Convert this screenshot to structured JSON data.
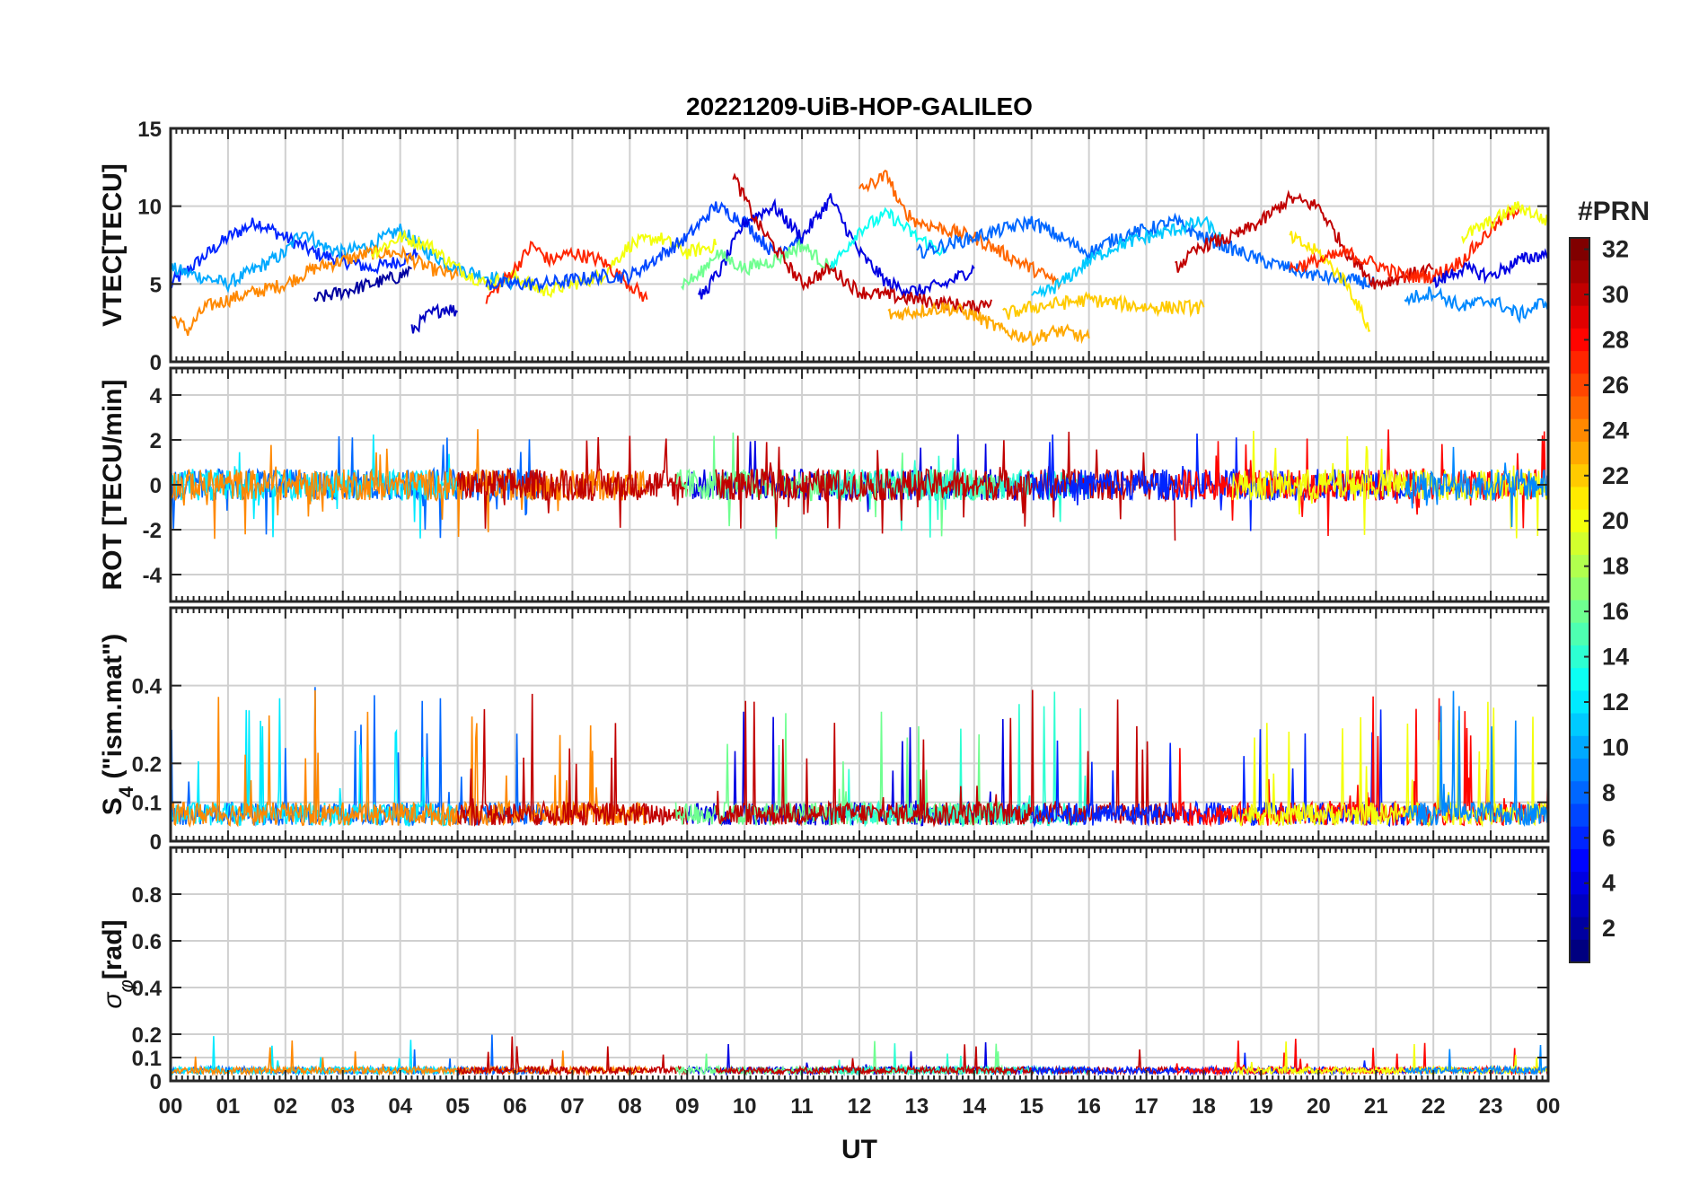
{
  "chart_data": {
    "type": "line",
    "title": "20221209-UiB-HOP-GALILEO",
    "xlabel": "UT",
    "x_ticks": [
      "00",
      "01",
      "02",
      "03",
      "04",
      "05",
      "06",
      "07",
      "08",
      "09",
      "10",
      "11",
      "12",
      "13",
      "14",
      "15",
      "16",
      "17",
      "18",
      "19",
      "20",
      "21",
      "22",
      "23",
      "00"
    ],
    "xlim": [
      0,
      24
    ],
    "grid": true,
    "colorbar": {
      "label": "#PRN",
      "range": [
        1,
        32
      ],
      "ticks": [
        "2",
        "4",
        "6",
        "8",
        "10",
        "12",
        "14",
        "16",
        "18",
        "20",
        "22",
        "24",
        "26",
        "28",
        "30",
        "32"
      ],
      "colormap": "jet",
      "placement": "right"
    },
    "panels": [
      {
        "id": "vtec",
        "ylabel": "VTEC[TECU]",
        "ylim": [
          0,
          15
        ],
        "yticks": [
          "0",
          "5",
          "10",
          "15"
        ],
        "series": [
          {
            "prn": 6,
            "x": [
              0.0,
              0.5,
              1.0,
              1.5,
              2.0,
              2.5,
              3.0,
              3.5,
              4.0,
              4.3
            ],
            "y": [
              5.0,
              6.5,
              8.0,
              9.0,
              8.0,
              7.0,
              6.5,
              6.0,
              6.5,
              7.0
            ]
          },
          {
            "prn": 10,
            "x": [
              0.0,
              0.5,
              1.0,
              1.5,
              2.0,
              2.3,
              2.6,
              3.0,
              3.5,
              4.0,
              4.5,
              5.0,
              6.0
            ],
            "y": [
              6.0,
              5.5,
              5.0,
              6.0,
              7.0,
              8.5,
              7.5,
              7.0,
              7.5,
              8.5,
              7.0,
              6.0,
              5.0
            ]
          },
          {
            "prn": 24,
            "x": [
              0.0,
              0.3,
              0.6,
              1.0,
              1.5,
              2.0,
              2.5,
              3.0,
              3.5,
              4.0,
              4.5,
              5.0
            ],
            "y": [
              3.0,
              2.0,
              3.5,
              4.0,
              4.5,
              5.0,
              6.0,
              6.5,
              7.0,
              7.0,
              6.0,
              5.5
            ]
          },
          {
            "prn": 2,
            "x": [
              2.5,
              3.0,
              3.5,
              4.0,
              4.2
            ],
            "y": [
              4.0,
              4.5,
              5.0,
              5.5,
              6.0
            ]
          },
          {
            "prn": 3,
            "x": [
              4.2,
              4.5,
              4.8,
              5.0
            ],
            "y": [
              2.0,
              3.0,
              3.5,
              3.2
            ]
          },
          {
            "prn": 20,
            "x": [
              3.5,
              4.0,
              4.5,
              5.0,
              5.5,
              6.0,
              6.5,
              7.0,
              7.5,
              8.0,
              8.5,
              9.0,
              9.5
            ],
            "y": [
              7.0,
              8.0,
              7.5,
              6.0,
              5.0,
              5.5,
              4.5,
              5.0,
              5.5,
              7.5,
              8.0,
              7.0,
              7.5
            ]
          },
          {
            "prn": 27,
            "x": [
              5.5,
              6.0,
              6.3,
              6.6,
              7.0,
              7.5,
              8.0,
              8.3
            ],
            "y": [
              4.0,
              6.0,
              7.5,
              6.5,
              7.0,
              6.5,
              5.0,
              4.0
            ]
          },
          {
            "prn": 7,
            "x": [
              5.5,
              6.5,
              7.5,
              8.0,
              9.0,
              9.5,
              10.0,
              10.5,
              11.0
            ],
            "y": [
              5.0,
              5.0,
              5.5,
              5.5,
              8.0,
              10.0,
              9.0,
              7.0,
              8.0
            ]
          },
          {
            "prn": 4,
            "x": [
              9.2,
              9.6,
              10.0,
              10.5,
              11.0,
              11.5,
              12.0,
              12.5,
              13.0,
              13.5,
              14.0
            ],
            "y": [
              4.0,
              6.0,
              9.0,
              10.0,
              8.0,
              10.5,
              7.0,
              5.0,
              4.5,
              5.0,
              6.0
            ]
          },
          {
            "prn": 16,
            "x": [
              8.9,
              9.2,
              9.5,
              10.0,
              10.5,
              11.0,
              11.5
            ],
            "y": [
              5.0,
              5.5,
              7.0,
              6.0,
              6.5,
              7.5,
              6.0
            ]
          },
          {
            "prn": 30,
            "x": [
              9.8,
              10.2,
              10.6,
              11.0,
              11.5,
              12.0,
              13.0,
              14.0,
              14.3
            ],
            "y": [
              12.0,
              9.0,
              7.0,
              5.0,
              6.0,
              4.5,
              4.0,
              3.5,
              4.0
            ]
          },
          {
            "prn": 13,
            "x": [
              11.5,
              12.0,
              12.5,
              13.0,
              13.5
            ],
            "y": [
              6.0,
              8.5,
              9.5,
              8.0,
              7.0
            ]
          },
          {
            "prn": 25,
            "x": [
              12.0,
              12.5,
              12.7,
              13.0,
              14.0,
              14.5,
              15.0,
              15.5
            ],
            "y": [
              11.0,
              12.0,
              10.0,
              9.0,
              8.0,
              7.0,
              6.0,
              5.0
            ]
          },
          {
            "prn": 23,
            "x": [
              12.5,
              13.5,
              14.0,
              14.5,
              15.0,
              15.5,
              16.0
            ],
            "y": [
              3.0,
              3.5,
              3.0,
              2.0,
              1.5,
              2.0,
              1.5
            ]
          },
          {
            "prn": 8,
            "x": [
              13.0,
              14.0,
              15.0,
              15.5,
              16.0,
              16.5,
              17.0,
              17.5,
              18.0,
              19.0,
              20.0,
              21.0
            ],
            "y": [
              7.0,
              8.0,
              9.0,
              8.0,
              7.0,
              8.0,
              8.5,
              9.0,
              8.0,
              6.5,
              5.5,
              5.0
            ]
          },
          {
            "prn": 11,
            "x": [
              15.0,
              15.5,
              16.0,
              16.5,
              17.0,
              17.5,
              18.0,
              18.3
            ],
            "y": [
              4.0,
              5.0,
              6.5,
              7.5,
              8.0,
              8.5,
              9.0,
              8.0
            ]
          },
          {
            "prn": 22,
            "x": [
              14.5,
              15.0,
              16.0,
              17.0,
              18.0
            ],
            "y": [
              3.0,
              3.5,
              4.0,
              3.5,
              3.5
            ]
          },
          {
            "prn": 30,
            "x": [
              17.5,
              18.0,
              18.5,
              19.0,
              19.5,
              20.0,
              20.5,
              21.0,
              21.5,
              22.0
            ],
            "y": [
              6.0,
              7.5,
              8.0,
              9.0,
              10.5,
              10.0,
              7.0,
              5.0,
              5.5,
              6.0
            ]
          },
          {
            "prn": 21,
            "x": [
              19.5,
              20.0,
              20.5,
              20.9
            ],
            "y": [
              8.0,
              7.0,
              5.0,
              2.0
            ]
          },
          {
            "prn": 27,
            "x": [
              19.5,
              20.5,
              21.5,
              22.0,
              22.5,
              23.0,
              23.5
            ],
            "y": [
              6.0,
              7.0,
              5.5,
              5.5,
              6.5,
              8.5,
              10.0
            ]
          },
          {
            "prn": 20,
            "x": [
              22.5,
              23.0,
              23.5,
              24.0
            ],
            "y": [
              8.0,
              9.0,
              10.0,
              9.0
            ]
          },
          {
            "prn": 9,
            "x": [
              21.5,
              22.0,
              22.5,
              23.0,
              23.5,
              24.0
            ],
            "y": [
              4.0,
              4.5,
              3.5,
              4.0,
              3.0,
              4.0
            ]
          },
          {
            "prn": 4,
            "x": [
              22.0,
              22.5,
              23.0,
              23.5,
              24.0
            ],
            "y": [
              5.0,
              6.0,
              5.5,
              6.5,
              7.0
            ]
          }
        ]
      },
      {
        "id": "rot",
        "ylabel": "ROT [TECU/min]",
        "ylim": [
          -5.2,
          5.2
        ],
        "yticks": [
          "-4",
          "-2",
          "0",
          "2",
          "4"
        ]
      },
      {
        "id": "s4",
        "ylabel": "S4 (\"ism.mat\")",
        "ylim": [
          0,
          0.6
        ],
        "yticks": [
          "0",
          "0.1",
          "0.2",
          "0.4"
        ]
      },
      {
        "id": "sigma",
        "ylabel": "σφ[rad]",
        "ylim": [
          0,
          1.0
        ],
        "yticks": [
          "0",
          "0.1",
          "0.2",
          "0.4",
          "0.6",
          "0.8"
        ]
      }
    ]
  }
}
